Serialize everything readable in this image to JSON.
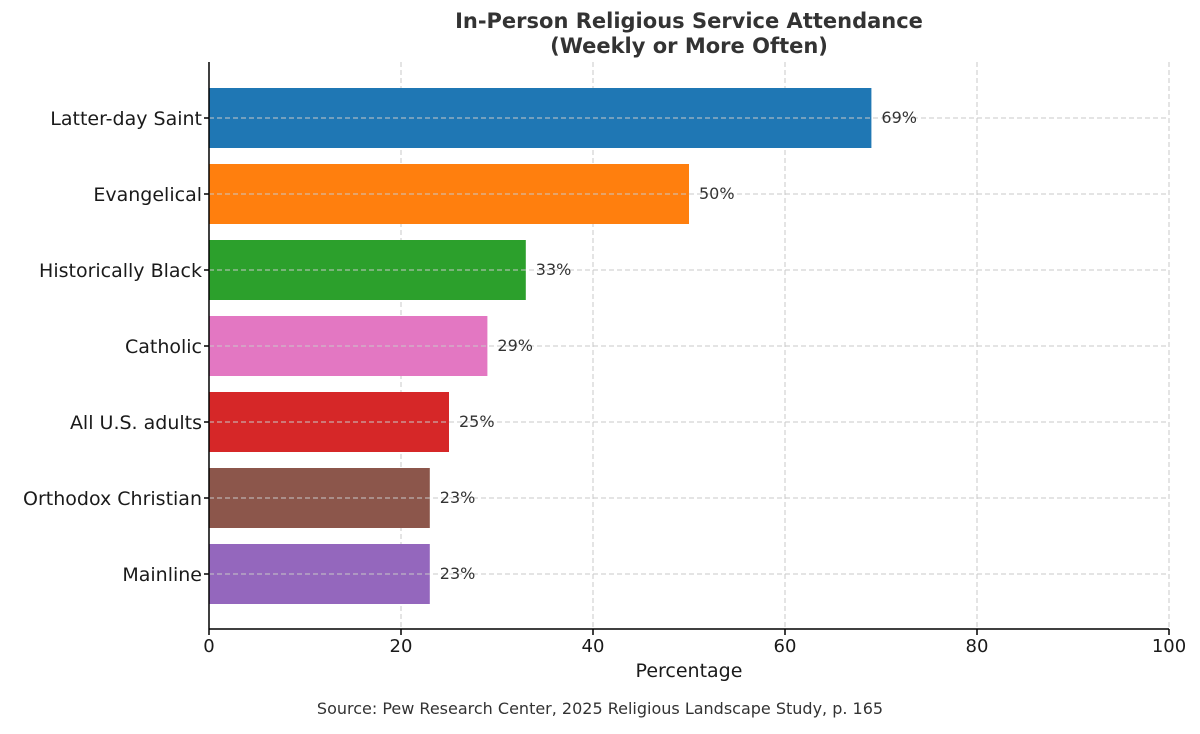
{
  "chart_data": {
    "type": "bar",
    "orientation": "horizontal",
    "title": "In-Person Religious Service Attendance",
    "subtitle": "(Weekly or More Often)",
    "xlabel": "Percentage",
    "ylabel": "",
    "xlim": [
      0,
      100
    ],
    "xticks": [
      0,
      20,
      40,
      60,
      80,
      100
    ],
    "grid": true,
    "categories": [
      "Latter-day Saint",
      "Evangelical",
      "Historically Black",
      "Catholic",
      "All U.S. adults",
      "Orthodox Christian",
      "Mainline"
    ],
    "values": [
      69,
      50,
      33,
      29,
      25,
      23,
      23
    ],
    "value_labels": [
      "69%",
      "50%",
      "33%",
      "29%",
      "25%",
      "23%",
      "23%"
    ],
    "colors": [
      "#1f77b4",
      "#ff7f0e",
      "#2ca02c",
      "#e377c2",
      "#d62728",
      "#8c564b",
      "#9467bd"
    ],
    "source": "Source: Pew Research Center, 2025 Religious Landscape Study, p. 165"
  }
}
